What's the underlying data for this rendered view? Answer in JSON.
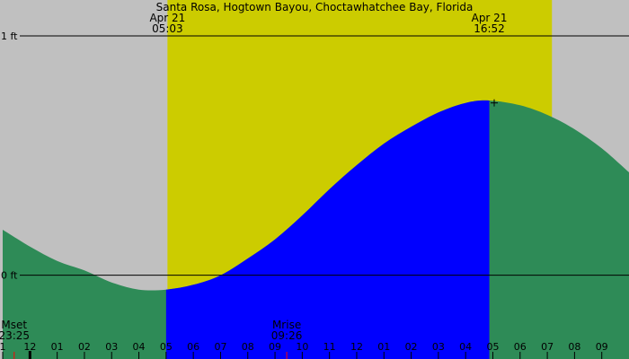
{
  "chart_data": {
    "type": "area",
    "title": "Santa Rosa, Hogtown Bayou, Choctawhatchee Bay, Florida",
    "xlabel": "",
    "ylabel": "",
    "x_range_hours": [
      -1.1,
      22.0
    ],
    "y_range_ft": [
      -0.35,
      1.15
    ],
    "y_gridlines": [
      {
        "value": 1,
        "label": "1 ft"
      },
      {
        "value": 0,
        "label": "0 ft"
      }
    ],
    "day_period": {
      "start_hour": 5.05,
      "end_hour": 19.17
    },
    "highlight_period": {
      "start_hour": 5.0,
      "end_hour": 16.87
    },
    "events": [
      {
        "label": "Apr 21",
        "time": "05:03",
        "hour": 5.05
      },
      {
        "label": "Apr 21",
        "time": "16:52",
        "hour": 16.87
      }
    ],
    "moon_events": [
      {
        "label": "Mset",
        "time": "23:25",
        "hour": -0.58
      },
      {
        "label": "Mrise",
        "time": "09:26",
        "hour": 9.43
      }
    ],
    "series": [
      {
        "x": [
          -1.0,
          0,
          1,
          2,
          3,
          4,
          5,
          6,
          7,
          8,
          9,
          10,
          11,
          12,
          13,
          14,
          15,
          16,
          16.87,
          18,
          19,
          20,
          21,
          22
        ],
        "values": [
          0.19,
          0.12,
          0.06,
          0.02,
          -0.03,
          -0.06,
          -0.06,
          -0.04,
          0.0,
          0.07,
          0.15,
          0.25,
          0.36,
          0.46,
          0.55,
          0.62,
          0.68,
          0.72,
          0.73,
          0.71,
          0.67,
          0.61,
          0.53,
          0.43
        ]
      }
    ],
    "x_tick_labels": [
      "1",
      "12",
      "01",
      "02",
      "03",
      "04",
      "05",
      "06",
      "07",
      "08",
      "09",
      "10",
      "11",
      "12",
      "01",
      "02",
      "03",
      "04",
      "05",
      "06",
      "07",
      "08",
      "09"
    ],
    "x_tick_hours": [
      -1,
      0,
      1,
      2,
      3,
      4,
      5,
      6,
      7,
      8,
      9,
      10,
      11,
      12,
      13,
      14,
      15,
      16,
      17,
      18,
      19,
      20,
      21
    ],
    "peak_marker": {
      "hour": 17.05,
      "value": 0.72
    },
    "colors": {
      "background": "#c0c0c0",
      "daylight": "#cccc00",
      "tide": "#2e8b57",
      "highlight": "#0000ff",
      "grid": "#000000",
      "tick_major": "#000000",
      "tick_moon": "#ff0000"
    }
  }
}
